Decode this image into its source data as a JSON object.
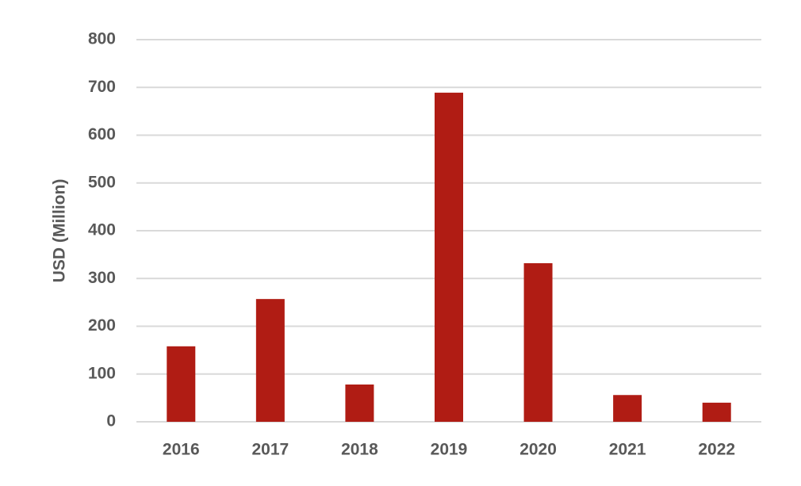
{
  "chart_data": {
    "type": "bar",
    "y_label": "USD (Million)",
    "categories": [
      "2016",
      "2017",
      "2018",
      "2019",
      "2020",
      "2021",
      "2022"
    ],
    "values": [
      158,
      257,
      78,
      689,
      332,
      56,
      40
    ],
    "color": "#b01c14",
    "ylim": [
      0,
      800
    ],
    "yticks": [
      0,
      100,
      200,
      300,
      400,
      500,
      600,
      700,
      800
    ],
    "grid": true
  }
}
